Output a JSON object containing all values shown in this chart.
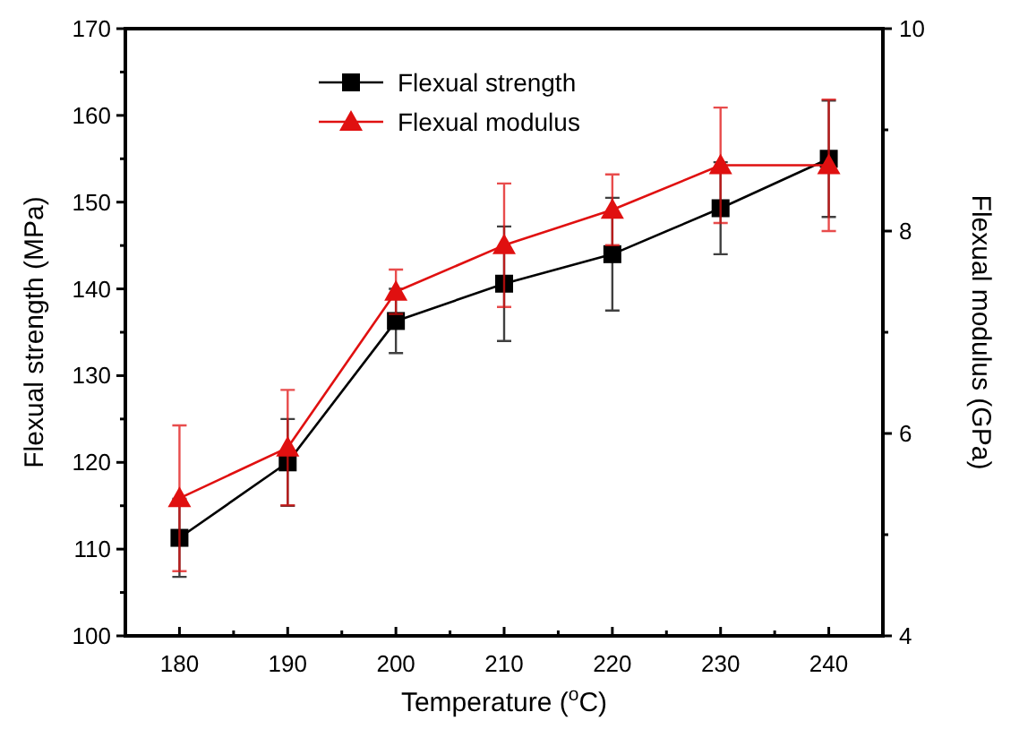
{
  "chart_data": {
    "type": "line",
    "xlabel": "Temperature ($^{o}$C)",
    "ylabel": "Flexual strength (MPa)",
    "y2label": "Flexual modulus (GPa)",
    "x": [
      180,
      190,
      200,
      210,
      220,
      230,
      240
    ],
    "xlim": [
      175,
      245
    ],
    "xticks": [
      {
        "value": 175,
        "label": null
      },
      180,
      {
        "value": 185,
        "label": null
      },
      190,
      {
        "value": 195,
        "label": null
      },
      200,
      {
        "value": 205,
        "label": null
      },
      210,
      {
        "value": 215,
        "label": null
      },
      220,
      {
        "value": 225,
        "label": null
      },
      230,
      {
        "value": 235,
        "label": null
      },
      240,
      {
        "value": 245,
        "label": null
      }
    ],
    "ylim": [
      100,
      170
    ],
    "yticks": [
      100,
      {
        "value": 105,
        "label": null
      },
      110,
      {
        "value": 115,
        "label": null
      },
      120,
      {
        "value": 125,
        "label": null
      },
      130,
      {
        "value": 135,
        "label": null
      },
      140,
      {
        "value": 145,
        "label": null
      },
      150,
      {
        "value": 155,
        "label": null
      },
      160,
      {
        "value": 165,
        "label": null
      },
      170
    ],
    "y2lim": [
      4,
      10
    ],
    "y2ticks": [
      4,
      {
        "value": 5,
        "label": null
      },
      6,
      {
        "value": 7,
        "label": null
      },
      8,
      {
        "value": 9,
        "label": null
      },
      10
    ],
    "grid": false,
    "legend": "top left",
    "line_style": "solid",
    "series": [
      {
        "name": "Flexual strength",
        "color": "#000000",
        "marker": "square",
        "values": [
          111.3,
          120,
          136.3,
          140.6,
          144,
          149.3,
          155
        ],
        "errors": [
          4.5,
          5,
          3.7,
          6.6,
          6.5,
          5.3,
          6.7
        ]
      },
      {
        "name": "Flexual modulus",
        "color": "#e01010",
        "marker": "triangle",
        "axis": "y2",
        "values": [
          5.36,
          5.86,
          7.4,
          7.86,
          8.21,
          8.65,
          8.65
        ],
        "errors": [
          0.72,
          0.57,
          0.22,
          0.61,
          0.35,
          0.57,
          0.65
        ]
      }
    ]
  }
}
